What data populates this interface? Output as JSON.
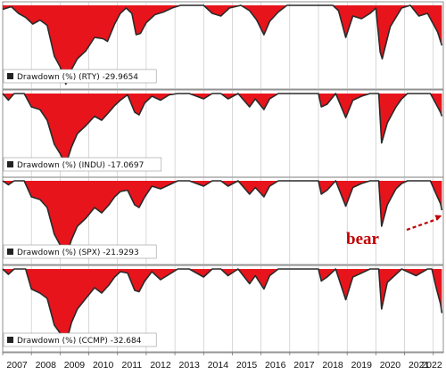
{
  "chart_data": {
    "type": "area",
    "x_ticks": [
      "2007",
      "2008",
      "2009",
      "2010",
      "2011",
      "2012",
      "2013",
      "2014",
      "2015",
      "2016",
      "2017",
      "2018",
      "2019",
      "2020",
      "2021",
      "2022"
    ],
    "x_range": [
      2007.0,
      2022.35
    ],
    "colors": {
      "fill": "#e8141c",
      "line": "#2a2a2a",
      "grid": "#bfbfbf",
      "panel_border": "#777777"
    },
    "annotation": {
      "text": "bear",
      "color": "#c00000",
      "points_to": {
        "panel": 2,
        "date": 2022.3,
        "drawdown": -21.9
      }
    },
    "panels": [
      {
        "legend": "Drawdown (%) (RTY) -29.9654",
        "ylim": [
          -60,
          0
        ],
        "points": [
          [
            2007.0,
            -3
          ],
          [
            2007.3,
            -1
          ],
          [
            2007.55,
            -6
          ],
          [
            2007.8,
            -9
          ],
          [
            2008.05,
            -14
          ],
          [
            2008.3,
            -11
          ],
          [
            2008.55,
            -15
          ],
          [
            2008.8,
            -38
          ],
          [
            2009.0,
            -46
          ],
          [
            2009.2,
            -59
          ],
          [
            2009.4,
            -48
          ],
          [
            2009.6,
            -40
          ],
          [
            2009.9,
            -34
          ],
          [
            2010.2,
            -24
          ],
          [
            2010.5,
            -25
          ],
          [
            2010.65,
            -27
          ],
          [
            2010.9,
            -14
          ],
          [
            2011.1,
            -6
          ],
          [
            2011.3,
            -2
          ],
          [
            2011.5,
            -6
          ],
          [
            2011.65,
            -22
          ],
          [
            2011.8,
            -21
          ],
          [
            2012.0,
            -13
          ],
          [
            2012.3,
            -7
          ],
          [
            2012.6,
            -5
          ],
          [
            2012.9,
            -2
          ],
          [
            2013.2,
            0
          ],
          [
            2013.6,
            0
          ],
          [
            2014.0,
            0
          ],
          [
            2014.3,
            -6
          ],
          [
            2014.6,
            -8
          ],
          [
            2014.9,
            -2
          ],
          [
            2015.3,
            0
          ],
          [
            2015.6,
            -4
          ],
          [
            2015.85,
            -11
          ],
          [
            2016.1,
            -22
          ],
          [
            2016.3,
            -12
          ],
          [
            2016.6,
            -5
          ],
          [
            2016.9,
            0
          ],
          [
            2017.3,
            0
          ],
          [
            2017.7,
            0
          ],
          [
            2018.0,
            0
          ],
          [
            2018.5,
            0
          ],
          [
            2018.7,
            -4
          ],
          [
            2018.95,
            -24
          ],
          [
            2019.2,
            -8
          ],
          [
            2019.5,
            -10
          ],
          [
            2019.8,
            -6
          ],
          [
            2020.0,
            -2
          ],
          [
            2020.15,
            -35
          ],
          [
            2020.22,
            -40
          ],
          [
            2020.5,
            -16
          ],
          [
            2020.9,
            -2
          ],
          [
            2021.2,
            0
          ],
          [
            2021.5,
            -8
          ],
          [
            2021.8,
            -6
          ],
          [
            2022.0,
            -14
          ],
          [
            2022.15,
            -20
          ],
          [
            2022.3,
            -30
          ]
        ]
      },
      {
        "legend": "Drawdown (%) (INDU) -17.0697",
        "ylim": [
          -60,
          0
        ],
        "points": [
          [
            2007.0,
            0
          ],
          [
            2007.2,
            -5
          ],
          [
            2007.4,
            0
          ],
          [
            2007.75,
            0
          ],
          [
            2008.0,
            -10
          ],
          [
            2008.3,
            -12
          ],
          [
            2008.55,
            -20
          ],
          [
            2008.8,
            -38
          ],
          [
            2009.0,
            -45
          ],
          [
            2009.2,
            -53
          ],
          [
            2009.4,
            -40
          ],
          [
            2009.6,
            -30
          ],
          [
            2009.9,
            -24
          ],
          [
            2010.2,
            -17
          ],
          [
            2010.45,
            -20
          ],
          [
            2010.7,
            -14
          ],
          [
            2010.9,
            -9
          ],
          [
            2011.1,
            -5
          ],
          [
            2011.35,
            -1
          ],
          [
            2011.6,
            -14
          ],
          [
            2011.75,
            -16
          ],
          [
            2011.95,
            -7
          ],
          [
            2012.2,
            -2
          ],
          [
            2012.5,
            -5
          ],
          [
            2012.8,
            -1
          ],
          [
            2013.1,
            0
          ],
          [
            2013.5,
            0
          ],
          [
            2014.0,
            -4
          ],
          [
            2014.3,
            0
          ],
          [
            2014.6,
            0
          ],
          [
            2014.85,
            -4
          ],
          [
            2015.2,
            0
          ],
          [
            2015.6,
            -10
          ],
          [
            2015.8,
            -4
          ],
          [
            2016.1,
            -12
          ],
          [
            2016.3,
            -4
          ],
          [
            2016.6,
            0
          ],
          [
            2017.0,
            0
          ],
          [
            2017.5,
            0
          ],
          [
            2018.0,
            0
          ],
          [
            2018.1,
            -10
          ],
          [
            2018.3,
            -8
          ],
          [
            2018.6,
            0
          ],
          [
            2018.95,
            -18
          ],
          [
            2019.2,
            -5
          ],
          [
            2019.5,
            -2
          ],
          [
            2019.8,
            0
          ],
          [
            2020.1,
            0
          ],
          [
            2020.2,
            -37
          ],
          [
            2020.4,
            -22
          ],
          [
            2020.7,
            -10
          ],
          [
            2020.9,
            -4
          ],
          [
            2021.1,
            0
          ],
          [
            2021.5,
            0
          ],
          [
            2021.9,
            0
          ],
          [
            2022.1,
            -8
          ],
          [
            2022.25,
            -14
          ],
          [
            2022.3,
            -17
          ]
        ]
      },
      {
        "legend": "Drawdown (%) (SPX) -21.9293",
        "ylim": [
          -60,
          0
        ],
        "points": [
          [
            2007.0,
            0
          ],
          [
            2007.2,
            -3
          ],
          [
            2007.4,
            0
          ],
          [
            2007.75,
            0
          ],
          [
            2008.0,
            -12
          ],
          [
            2008.3,
            -14
          ],
          [
            2008.55,
            -20
          ],
          [
            2008.8,
            -40
          ],
          [
            2009.0,
            -48
          ],
          [
            2009.2,
            -57
          ],
          [
            2009.4,
            -44
          ],
          [
            2009.6,
            -34
          ],
          [
            2009.9,
            -28
          ],
          [
            2010.2,
            -20
          ],
          [
            2010.45,
            -24
          ],
          [
            2010.7,
            -18
          ],
          [
            2010.9,
            -12
          ],
          [
            2011.1,
            -8
          ],
          [
            2011.35,
            -7
          ],
          [
            2011.6,
            -18
          ],
          [
            2011.75,
            -20
          ],
          [
            2011.95,
            -12
          ],
          [
            2012.2,
            -4
          ],
          [
            2012.5,
            -6
          ],
          [
            2012.8,
            -3
          ],
          [
            2013.1,
            0
          ],
          [
            2013.5,
            0
          ],
          [
            2014.0,
            -4
          ],
          [
            2014.3,
            0
          ],
          [
            2014.6,
            0
          ],
          [
            2014.85,
            -4
          ],
          [
            2015.2,
            0
          ],
          [
            2015.6,
            -10
          ],
          [
            2015.8,
            -5
          ],
          [
            2016.1,
            -12
          ],
          [
            2016.3,
            -4
          ],
          [
            2016.6,
            0
          ],
          [
            2017.0,
            0
          ],
          [
            2017.5,
            0
          ],
          [
            2018.0,
            0
          ],
          [
            2018.1,
            -10
          ],
          [
            2018.3,
            -7
          ],
          [
            2018.6,
            0
          ],
          [
            2018.95,
            -19
          ],
          [
            2019.2,
            -5
          ],
          [
            2019.5,
            -2
          ],
          [
            2019.8,
            0
          ],
          [
            2020.1,
            0
          ],
          [
            2020.2,
            -34
          ],
          [
            2020.4,
            -18
          ],
          [
            2020.7,
            -6
          ],
          [
            2020.9,
            -2
          ],
          [
            2021.1,
            0
          ],
          [
            2021.5,
            0
          ],
          [
            2021.9,
            0
          ],
          [
            2022.1,
            -10
          ],
          [
            2022.25,
            -17
          ],
          [
            2022.3,
            -22
          ]
        ]
      },
      {
        "legend": "Drawdown (%) (CCMP) -32.684",
        "ylim": [
          -60,
          0
        ],
        "points": [
          [
            2007.0,
            0
          ],
          [
            2007.2,
            -4
          ],
          [
            2007.4,
            0
          ],
          [
            2007.8,
            0
          ],
          [
            2008.0,
            -15
          ],
          [
            2008.3,
            -18
          ],
          [
            2008.55,
            -22
          ],
          [
            2008.8,
            -42
          ],
          [
            2009.0,
            -48
          ],
          [
            2009.2,
            -56
          ],
          [
            2009.4,
            -40
          ],
          [
            2009.6,
            -30
          ],
          [
            2009.9,
            -22
          ],
          [
            2010.2,
            -14
          ],
          [
            2010.45,
            -18
          ],
          [
            2010.7,
            -12
          ],
          [
            2010.9,
            -6
          ],
          [
            2011.1,
            -2
          ],
          [
            2011.35,
            -3
          ],
          [
            2011.6,
            -16
          ],
          [
            2011.75,
            -17
          ],
          [
            2011.95,
            -9
          ],
          [
            2012.2,
            -2
          ],
          [
            2012.5,
            -8
          ],
          [
            2012.8,
            -4
          ],
          [
            2013.1,
            0
          ],
          [
            2013.5,
            0
          ],
          [
            2014.0,
            -6
          ],
          [
            2014.3,
            0
          ],
          [
            2014.6,
            0
          ],
          [
            2014.85,
            -5
          ],
          [
            2015.2,
            0
          ],
          [
            2015.6,
            -11
          ],
          [
            2015.8,
            -5
          ],
          [
            2016.1,
            -15
          ],
          [
            2016.3,
            -5
          ],
          [
            2016.6,
            0
          ],
          [
            2017.0,
            0
          ],
          [
            2017.5,
            0
          ],
          [
            2018.0,
            0
          ],
          [
            2018.1,
            -9
          ],
          [
            2018.3,
            -6
          ],
          [
            2018.6,
            0
          ],
          [
            2018.95,
            -23
          ],
          [
            2019.2,
            -6
          ],
          [
            2019.5,
            -3
          ],
          [
            2019.8,
            0
          ],
          [
            2020.1,
            0
          ],
          [
            2020.2,
            -30
          ],
          [
            2020.4,
            -10
          ],
          [
            2020.7,
            -4
          ],
          [
            2020.9,
            0
          ],
          [
            2021.1,
            -2
          ],
          [
            2021.4,
            -5
          ],
          [
            2021.8,
            0
          ],
          [
            2021.95,
            0
          ],
          [
            2022.1,
            -14
          ],
          [
            2022.25,
            -26
          ],
          [
            2022.3,
            -33
          ]
        ]
      }
    ]
  }
}
